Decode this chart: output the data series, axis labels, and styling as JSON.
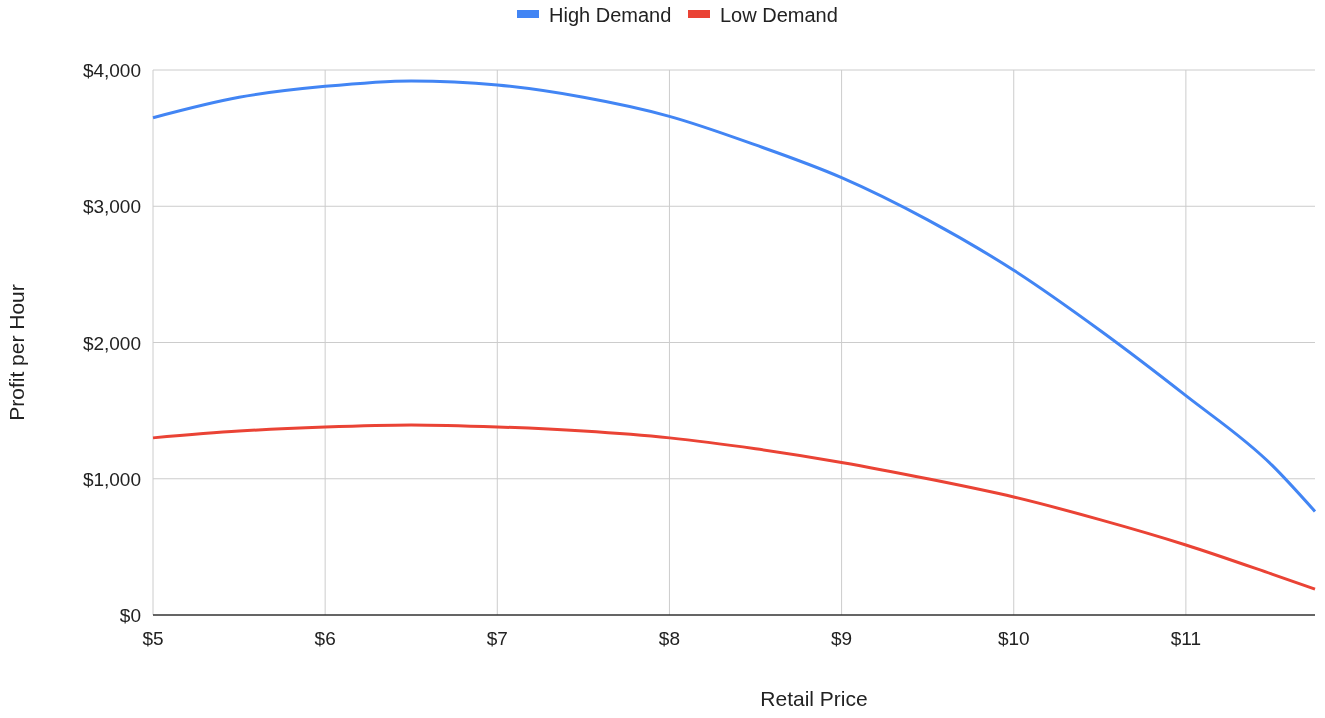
{
  "chart_data": {
    "type": "line",
    "xlabel": "Retail Price",
    "ylabel": "Profit per Hour",
    "x": [
      5,
      5.5,
      6,
      6.5,
      7,
      7.5,
      8,
      8.5,
      9,
      9.5,
      10,
      10.5,
      11,
      11.5,
      11.75
    ],
    "series": [
      {
        "name": "High Demand",
        "color": "#4285f4",
        "values": [
          3650,
          3800,
          3880,
          3920,
          3890,
          3800,
          3660,
          3450,
          3210,
          2900,
          2530,
          2090,
          1610,
          1100,
          760
        ]
      },
      {
        "name": "Low Demand",
        "color": "#ea4335",
        "values": [
          1300,
          1350,
          1380,
          1395,
          1380,
          1350,
          1300,
          1220,
          1120,
          1000,
          866,
          700,
          514,
          300,
          190
        ]
      }
    ],
    "xlim": [
      5,
      11.75
    ],
    "xticks": [
      {
        "value": 5,
        "label": "$5"
      },
      {
        "value": 6,
        "label": "$6"
      },
      {
        "value": 7,
        "label": "$7"
      },
      {
        "value": 8,
        "label": "$8"
      },
      {
        "value": 9,
        "label": "$9"
      },
      {
        "value": 10,
        "label": "$10"
      },
      {
        "value": 11,
        "label": "$11"
      }
    ],
    "ylim": [
      0,
      4000
    ],
    "yticks": [
      {
        "value": 0,
        "label": "$0"
      },
      {
        "value": 1000,
        "label": "$1,000"
      },
      {
        "value": 2000,
        "label": "$2,000"
      },
      {
        "value": 3000,
        "label": "$3,000"
      },
      {
        "value": 4000,
        "label": "$4,000"
      }
    ],
    "grid": true,
    "legend": "top",
    "marker": "none",
    "line_style": "solid"
  }
}
